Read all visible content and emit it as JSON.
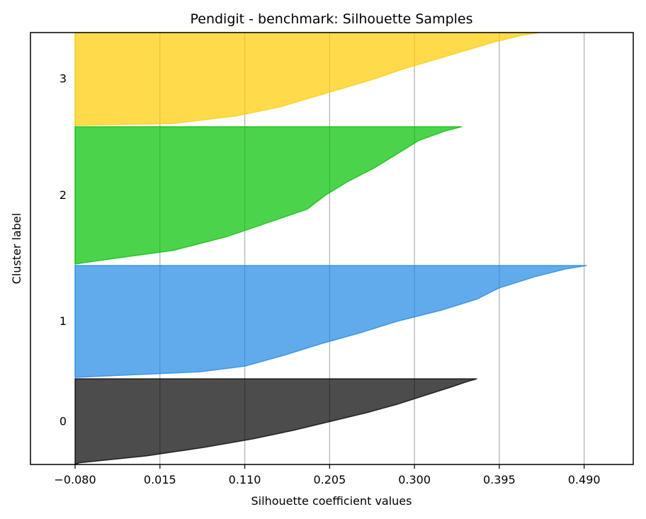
{
  "chart_data": {
    "type": "area",
    "title": "Pendigit - benchmark: Silhouette Samples",
    "xlabel": "Silhouette coefficient values",
    "ylabel": "Cluster label",
    "xlim": [
      -0.13,
      0.545
    ],
    "x_ticks": [
      -0.08,
      0.015,
      0.11,
      0.205,
      0.3,
      0.395,
      0.49
    ],
    "x_tick_labels": [
      "−0.080",
      "0.015",
      "0.110",
      "0.205",
      "0.300",
      "0.395",
      "0.490"
    ],
    "grid": "vertical",
    "legend": "none",
    "colors": {
      "0": "#000000",
      "1": "#1E88E5",
      "2": "#00C000",
      "3": "#FFCC00"
    },
    "series": [
      {
        "cluster": "0",
        "description": "sorted silhouette profile (fraction of cluster, coefficient)",
        "profile": [
          [
            0,
            -0.08
          ],
          [
            0.02,
            -0.075
          ],
          [
            0.1,
            0.0
          ],
          [
            0.2,
            0.065
          ],
          [
            0.3,
            0.12
          ],
          [
            0.4,
            0.165
          ],
          [
            0.5,
            0.205
          ],
          [
            0.6,
            0.245
          ],
          [
            0.7,
            0.28
          ],
          [
            0.8,
            0.31
          ],
          [
            0.9,
            0.34
          ],
          [
            0.97,
            0.36
          ],
          [
            1.0,
            0.37
          ]
        ]
      },
      {
        "cluster": "1",
        "description": "sorted silhouette profile (fraction of cluster, coefficient)",
        "profile": [
          [
            0,
            -0.08
          ],
          [
            0.05,
            0.06
          ],
          [
            0.1,
            0.11
          ],
          [
            0.2,
            0.155
          ],
          [
            0.3,
            0.195
          ],
          [
            0.4,
            0.24
          ],
          [
            0.5,
            0.28
          ],
          [
            0.6,
            0.33
          ],
          [
            0.7,
            0.37
          ],
          [
            0.8,
            0.395
          ],
          [
            0.9,
            0.435
          ],
          [
            0.97,
            0.47
          ],
          [
            1.0,
            0.493
          ]
        ]
      },
      {
        "cluster": "2",
        "description": "sorted silhouette profile (fraction of cluster, coefficient)",
        "profile": [
          [
            0,
            -0.08
          ],
          [
            0.02,
            -0.06
          ],
          [
            0.1,
            0.03
          ],
          [
            0.2,
            0.09
          ],
          [
            0.3,
            0.135
          ],
          [
            0.4,
            0.18
          ],
          [
            0.5,
            0.2
          ],
          [
            0.6,
            0.225
          ],
          [
            0.7,
            0.255
          ],
          [
            0.8,
            0.28
          ],
          [
            0.9,
            0.305
          ],
          [
            0.97,
            0.335
          ],
          [
            1.0,
            0.353
          ]
        ]
      },
      {
        "cluster": "3",
        "description": "sorted silhouette profile (fraction of cluster, coefficient)",
        "profile": [
          [
            0,
            -0.08
          ],
          [
            0.02,
            0.03
          ],
          [
            0.1,
            0.1
          ],
          [
            0.2,
            0.15
          ],
          [
            0.3,
            0.185
          ],
          [
            0.4,
            0.22
          ],
          [
            0.5,
            0.255
          ],
          [
            0.6,
            0.285
          ],
          [
            0.7,
            0.32
          ],
          [
            0.8,
            0.355
          ],
          [
            0.9,
            0.39
          ],
          [
            0.97,
            0.42
          ],
          [
            1.0,
            0.44
          ]
        ]
      }
    ],
    "cluster_labels": [
      "0",
      "1",
      "2",
      "3"
    ]
  }
}
